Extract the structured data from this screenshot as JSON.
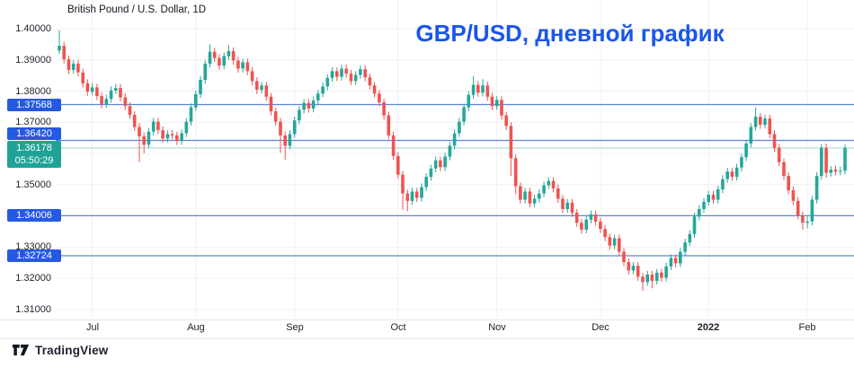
{
  "header": {
    "symbol_title": "British Pound / U.S. Dollar, 1D"
  },
  "overlay_title": {
    "text": "GBP/USD, дневной график",
    "color": "#1a56ec"
  },
  "footer": {
    "brand": "TradingView"
  },
  "colors": {
    "up": "#26a69a",
    "down": "#ef5350",
    "grid": "#f0eff3",
    "axis_text": "#20242c",
    "alert_line": "#5b87d6",
    "alert_badge": "#2559e3",
    "current_badge": "#1fa398",
    "overlay_title": "#1a56ec",
    "separator": "#e3e5ea",
    "brand_text": "#1e222d"
  },
  "y_axis": {
    "ticks": [
      {
        "label": "1.40000",
        "price": 1.4
      },
      {
        "label": "1.39000",
        "price": 1.39
      },
      {
        "label": "1.38000",
        "price": 1.38
      },
      {
        "label": "1.37000",
        "price": 1.37
      },
      {
        "label": "1.36000",
        "price": 1.36
      },
      {
        "label": "1.35000",
        "price": 1.35
      },
      {
        "label": "1.34000",
        "price": 1.34
      },
      {
        "label": "1.33000",
        "price": 1.33
      },
      {
        "label": "1.32000",
        "price": 1.32
      },
      {
        "label": "1.31000",
        "price": 1.31
      }
    ]
  },
  "x_axis": {
    "ticks": [
      {
        "label": "Jul",
        "index": 7,
        "emphasis": false
      },
      {
        "label": "Aug",
        "index": 29,
        "emphasis": false
      },
      {
        "label": "Sep",
        "index": 50,
        "emphasis": false
      },
      {
        "label": "Oct",
        "index": 72,
        "emphasis": false
      },
      {
        "label": "Nov",
        "index": 93,
        "emphasis": false
      },
      {
        "label": "Dec",
        "index": 115,
        "emphasis": false
      },
      {
        "label": "2022",
        "index": 138,
        "emphasis": true
      },
      {
        "label": "Feb",
        "index": 159,
        "emphasis": false
      }
    ]
  },
  "alert_levels": [
    {
      "label": "1.37568",
      "price": 1.37568
    },
    {
      "label": "1.36420",
      "price": 1.3642
    },
    {
      "label": "1.34006",
      "price": 1.34006
    },
    {
      "label": "1.32724",
      "price": 1.32724
    }
  ],
  "current_price": {
    "label": "1.36178",
    "countdown": "05:50:29",
    "price": 1.36178,
    "direction": "up"
  },
  "chart_data": {
    "type": "candlestick",
    "symbol": "GBP/USD",
    "interval": "1D",
    "title": "GBP/USD, дневной график",
    "price_axis_range": [
      1.3071,
      1.4092
    ],
    "visible_range": [
      "late Jun 2021",
      "early Feb 2022"
    ],
    "legend_position": "none",
    "grid": true,
    "candles_ohlc": [
      [
        1.393,
        1.3995,
        1.3918,
        1.3945
      ],
      [
        1.3945,
        1.3958,
        1.3889,
        1.3902
      ],
      [
        1.3902,
        1.3914,
        1.3855,
        1.3868
      ],
      [
        1.3868,
        1.39,
        1.3856,
        1.3888
      ],
      [
        1.3888,
        1.39,
        1.3847,
        1.386
      ],
      [
        1.386,
        1.3872,
        1.3812,
        1.3825
      ],
      [
        1.3825,
        1.3838,
        1.3785,
        1.3798
      ],
      [
        1.3798,
        1.3825,
        1.3786,
        1.3812
      ],
      [
        1.3812,
        1.3824,
        1.3771,
        1.3784
      ],
      [
        1.3784,
        1.3796,
        1.3745,
        1.3758
      ],
      [
        1.3758,
        1.3788,
        1.3746,
        1.3775
      ],
      [
        1.3775,
        1.3815,
        1.3763,
        1.3802
      ],
      [
        1.3802,
        1.3823,
        1.379,
        1.381
      ],
      [
        1.381,
        1.3822,
        1.3767,
        1.378
      ],
      [
        1.378,
        1.3792,
        1.3739,
        1.3752
      ],
      [
        1.3752,
        1.3764,
        1.3711,
        1.3724
      ],
      [
        1.3724,
        1.3736,
        1.3672,
        1.3685
      ],
      [
        1.3685,
        1.3697,
        1.3572,
        1.3655
      ],
      [
        1.3655,
        1.3667,
        1.36,
        1.3628
      ],
      [
        1.3628,
        1.3682,
        1.3616,
        1.367
      ],
      [
        1.367,
        1.3714,
        1.3658,
        1.3702
      ],
      [
        1.3702,
        1.3714,
        1.3662,
        1.3675
      ],
      [
        1.3675,
        1.3687,
        1.3635,
        1.3648
      ],
      [
        1.3648,
        1.3674,
        1.3636,
        1.3662
      ],
      [
        1.3662,
        1.3675,
        1.3645,
        1.3658
      ],
      [
        1.3658,
        1.367,
        1.3627,
        1.364
      ],
      [
        1.364,
        1.3677,
        1.3628,
        1.3665
      ],
      [
        1.3665,
        1.3714,
        1.3653,
        1.3702
      ],
      [
        1.3702,
        1.376,
        1.369,
        1.3748
      ],
      [
        1.3748,
        1.3802,
        1.3736,
        1.379
      ],
      [
        1.379,
        1.3848,
        1.3778,
        1.3836
      ],
      [
        1.3836,
        1.39,
        1.3824,
        1.3888
      ],
      [
        1.3888,
        1.395,
        1.3876,
        1.3926
      ],
      [
        1.3926,
        1.3938,
        1.3893,
        1.3906
      ],
      [
        1.3906,
        1.3918,
        1.3869,
        1.3882
      ],
      [
        1.3882,
        1.3924,
        1.387,
        1.3912
      ],
      [
        1.3912,
        1.3948,
        1.39,
        1.3928
      ],
      [
        1.3928,
        1.394,
        1.3885,
        1.3898
      ],
      [
        1.3898,
        1.391,
        1.3859,
        1.3872
      ],
      [
        1.3872,
        1.3904,
        1.386,
        1.3892
      ],
      [
        1.3892,
        1.3904,
        1.3851,
        1.3864
      ],
      [
        1.3864,
        1.3876,
        1.3819,
        1.3832
      ],
      [
        1.3832,
        1.3844,
        1.3791,
        1.3804
      ],
      [
        1.3804,
        1.383,
        1.3792,
        1.3818
      ],
      [
        1.3818,
        1.383,
        1.3769,
        1.3782
      ],
      [
        1.3782,
        1.3794,
        1.3722,
        1.3735
      ],
      [
        1.3735,
        1.3747,
        1.3689,
        1.3702
      ],
      [
        1.3702,
        1.3714,
        1.3602,
        1.3658
      ],
      [
        1.3658,
        1.367,
        1.358,
        1.3625
      ],
      [
        1.3625,
        1.3674,
        1.3613,
        1.3662
      ],
      [
        1.3662,
        1.3718,
        1.365,
        1.3706
      ],
      [
        1.3706,
        1.3752,
        1.3694,
        1.374
      ],
      [
        1.374,
        1.3774,
        1.3728,
        1.3762
      ],
      [
        1.3762,
        1.3774,
        1.3731,
        1.3744
      ],
      [
        1.3744,
        1.3782,
        1.3732,
        1.377
      ],
      [
        1.377,
        1.3804,
        1.3758,
        1.3792
      ],
      [
        1.3792,
        1.3827,
        1.378,
        1.3815
      ],
      [
        1.3815,
        1.3854,
        1.3803,
        1.3842
      ],
      [
        1.3842,
        1.3876,
        1.383,
        1.3864
      ],
      [
        1.3864,
        1.3876,
        1.3833,
        1.3846
      ],
      [
        1.3846,
        1.3884,
        1.3834,
        1.3872
      ],
      [
        1.3872,
        1.3884,
        1.3843,
        1.3856
      ],
      [
        1.3856,
        1.3868,
        1.3819,
        1.3832
      ],
      [
        1.3832,
        1.3864,
        1.382,
        1.3852
      ],
      [
        1.3852,
        1.3882,
        1.384,
        1.387
      ],
      [
        1.387,
        1.3882,
        1.3831,
        1.3844
      ],
      [
        1.3844,
        1.3856,
        1.3805,
        1.3818
      ],
      [
        1.3818,
        1.383,
        1.3779,
        1.3792
      ],
      [
        1.3792,
        1.3804,
        1.3751,
        1.3764
      ],
      [
        1.3764,
        1.3776,
        1.3709,
        1.3722
      ],
      [
        1.3722,
        1.3734,
        1.3645,
        1.3658
      ],
      [
        1.3658,
        1.367,
        1.3579,
        1.3592
      ],
      [
        1.3592,
        1.3604,
        1.3519,
        1.3532
      ],
      [
        1.3532,
        1.3544,
        1.342,
        1.3472
      ],
      [
        1.3472,
        1.3484,
        1.3415,
        1.3448
      ],
      [
        1.3448,
        1.349,
        1.3436,
        1.3478
      ],
      [
        1.3478,
        1.349,
        1.3445,
        1.3458
      ],
      [
        1.3458,
        1.3504,
        1.3446,
        1.3492
      ],
      [
        1.3492,
        1.3537,
        1.348,
        1.3525
      ],
      [
        1.3525,
        1.3564,
        1.3513,
        1.3552
      ],
      [
        1.3552,
        1.359,
        1.354,
        1.3578
      ],
      [
        1.3578,
        1.359,
        1.3543,
        1.3556
      ],
      [
        1.3556,
        1.3602,
        1.3544,
        1.359
      ],
      [
        1.359,
        1.3637,
        1.3578,
        1.3625
      ],
      [
        1.3625,
        1.3677,
        1.3613,
        1.3665
      ],
      [
        1.3665,
        1.3714,
        1.3653,
        1.3702
      ],
      [
        1.3702,
        1.376,
        1.369,
        1.3748
      ],
      [
        1.3748,
        1.38,
        1.3736,
        1.3788
      ],
      [
        1.3788,
        1.3848,
        1.3776,
        1.382
      ],
      [
        1.382,
        1.3832,
        1.3782,
        1.3795
      ],
      [
        1.3795,
        1.3838,
        1.3783,
        1.3818
      ],
      [
        1.3818,
        1.383,
        1.3769,
        1.3782
      ],
      [
        1.3782,
        1.3794,
        1.3739,
        1.3752
      ],
      [
        1.3752,
        1.3784,
        1.374,
        1.3772
      ],
      [
        1.3772,
        1.3784,
        1.3709,
        1.3722
      ],
      [
        1.3722,
        1.3734,
        1.3675,
        1.3688
      ],
      [
        1.3688,
        1.37,
        1.3528,
        1.3585
      ],
      [
        1.3585,
        1.3597,
        1.347,
        1.3495
      ],
      [
        1.3495,
        1.3507,
        1.3439,
        1.3452
      ],
      [
        1.3452,
        1.349,
        1.344,
        1.3478
      ],
      [
        1.3478,
        1.349,
        1.3427,
        1.344
      ],
      [
        1.344,
        1.3467,
        1.3428,
        1.3455
      ],
      [
        1.3455,
        1.3484,
        1.3443,
        1.3472
      ],
      [
        1.3472,
        1.351,
        1.346,
        1.3498
      ],
      [
        1.3498,
        1.3524,
        1.3486,
        1.3512
      ],
      [
        1.3512,
        1.3524,
        1.3475,
        1.3488
      ],
      [
        1.3488,
        1.35,
        1.3442,
        1.3455
      ],
      [
        1.3455,
        1.3467,
        1.3409,
        1.3422
      ],
      [
        1.3422,
        1.3454,
        1.341,
        1.3442
      ],
      [
        1.3442,
        1.3454,
        1.3397,
        1.341
      ],
      [
        1.341,
        1.3422,
        1.3365,
        1.3378
      ],
      [
        1.3378,
        1.339,
        1.3343,
        1.3356
      ],
      [
        1.3356,
        1.34,
        1.3344,
        1.3388
      ],
      [
        1.3388,
        1.3417,
        1.3376,
        1.3405
      ],
      [
        1.3405,
        1.3417,
        1.3369,
        1.3382
      ],
      [
        1.3382,
        1.3394,
        1.3345,
        1.3358
      ],
      [
        1.3358,
        1.337,
        1.3319,
        1.3332
      ],
      [
        1.3332,
        1.3344,
        1.3292,
        1.3305
      ],
      [
        1.3305,
        1.334,
        1.3293,
        1.3328
      ],
      [
        1.3328,
        1.334,
        1.3272,
        1.3285
      ],
      [
        1.3285,
        1.3297,
        1.3239,
        1.3252
      ],
      [
        1.3252,
        1.3264,
        1.3212,
        1.3225
      ],
      [
        1.3225,
        1.3252,
        1.3213,
        1.324
      ],
      [
        1.324,
        1.3252,
        1.3192,
        1.3205
      ],
      [
        1.3205,
        1.3217,
        1.316,
        1.3188
      ],
      [
        1.3188,
        1.3224,
        1.3176,
        1.3212
      ],
      [
        1.3212,
        1.3224,
        1.3168,
        1.3192
      ],
      [
        1.3192,
        1.323,
        1.318,
        1.3218
      ],
      [
        1.3218,
        1.323,
        1.3189,
        1.3202
      ],
      [
        1.3202,
        1.325,
        1.319,
        1.3238
      ],
      [
        1.3238,
        1.3277,
        1.3226,
        1.3265
      ],
      [
        1.3265,
        1.3277,
        1.3235,
        1.3248
      ],
      [
        1.3248,
        1.3297,
        1.3236,
        1.3285
      ],
      [
        1.3285,
        1.3327,
        1.3273,
        1.3315
      ],
      [
        1.3315,
        1.3354,
        1.3303,
        1.3342
      ],
      [
        1.3342,
        1.341,
        1.333,
        1.3398
      ],
      [
        1.3398,
        1.3434,
        1.3386,
        1.3422
      ],
      [
        1.3422,
        1.3457,
        1.341,
        1.3445
      ],
      [
        1.3445,
        1.348,
        1.3433,
        1.3468
      ],
      [
        1.3468,
        1.348,
        1.3439,
        1.3452
      ],
      [
        1.3452,
        1.3497,
        1.344,
        1.3485
      ],
      [
        1.3485,
        1.353,
        1.3473,
        1.3518
      ],
      [
        1.3518,
        1.3554,
        1.3506,
        1.3542
      ],
      [
        1.3542,
        1.3554,
        1.3512,
        1.3525
      ],
      [
        1.3525,
        1.3567,
        1.3513,
        1.3555
      ],
      [
        1.3555,
        1.36,
        1.3543,
        1.3588
      ],
      [
        1.3588,
        1.3644,
        1.3576,
        1.3632
      ],
      [
        1.3632,
        1.3697,
        1.362,
        1.3685
      ],
      [
        1.3685,
        1.3748,
        1.3673,
        1.3718
      ],
      [
        1.3718,
        1.373,
        1.3679,
        1.3692
      ],
      [
        1.3692,
        1.3724,
        1.368,
        1.3712
      ],
      [
        1.3712,
        1.3724,
        1.3649,
        1.3662
      ],
      [
        1.3662,
        1.3674,
        1.3605,
        1.3618
      ],
      [
        1.3618,
        1.363,
        1.3559,
        1.3572
      ],
      [
        1.3572,
        1.3584,
        1.3515,
        1.3528
      ],
      [
        1.3528,
        1.354,
        1.3469,
        1.3482
      ],
      [
        1.3482,
        1.3494,
        1.3435,
        1.3448
      ],
      [
        1.3448,
        1.346,
        1.3389,
        1.3402
      ],
      [
        1.3402,
        1.3414,
        1.3356,
        1.3378
      ],
      [
        1.3378,
        1.3398,
        1.336,
        1.3382
      ],
      [
        1.3382,
        1.3464,
        1.337,
        1.3452
      ],
      [
        1.3452,
        1.354,
        1.344,
        1.3528
      ],
      [
        1.3528,
        1.363,
        1.3516,
        1.3618
      ],
      [
        1.3618,
        1.3632,
        1.3522,
        1.3538
      ],
      [
        1.3538,
        1.356,
        1.3526,
        1.3548
      ],
      [
        1.3548,
        1.356,
        1.353,
        1.3542
      ],
      [
        1.3542,
        1.3558,
        1.353,
        1.3545
      ],
      [
        1.3545,
        1.3628,
        1.3533,
        1.36178
      ]
    ]
  }
}
